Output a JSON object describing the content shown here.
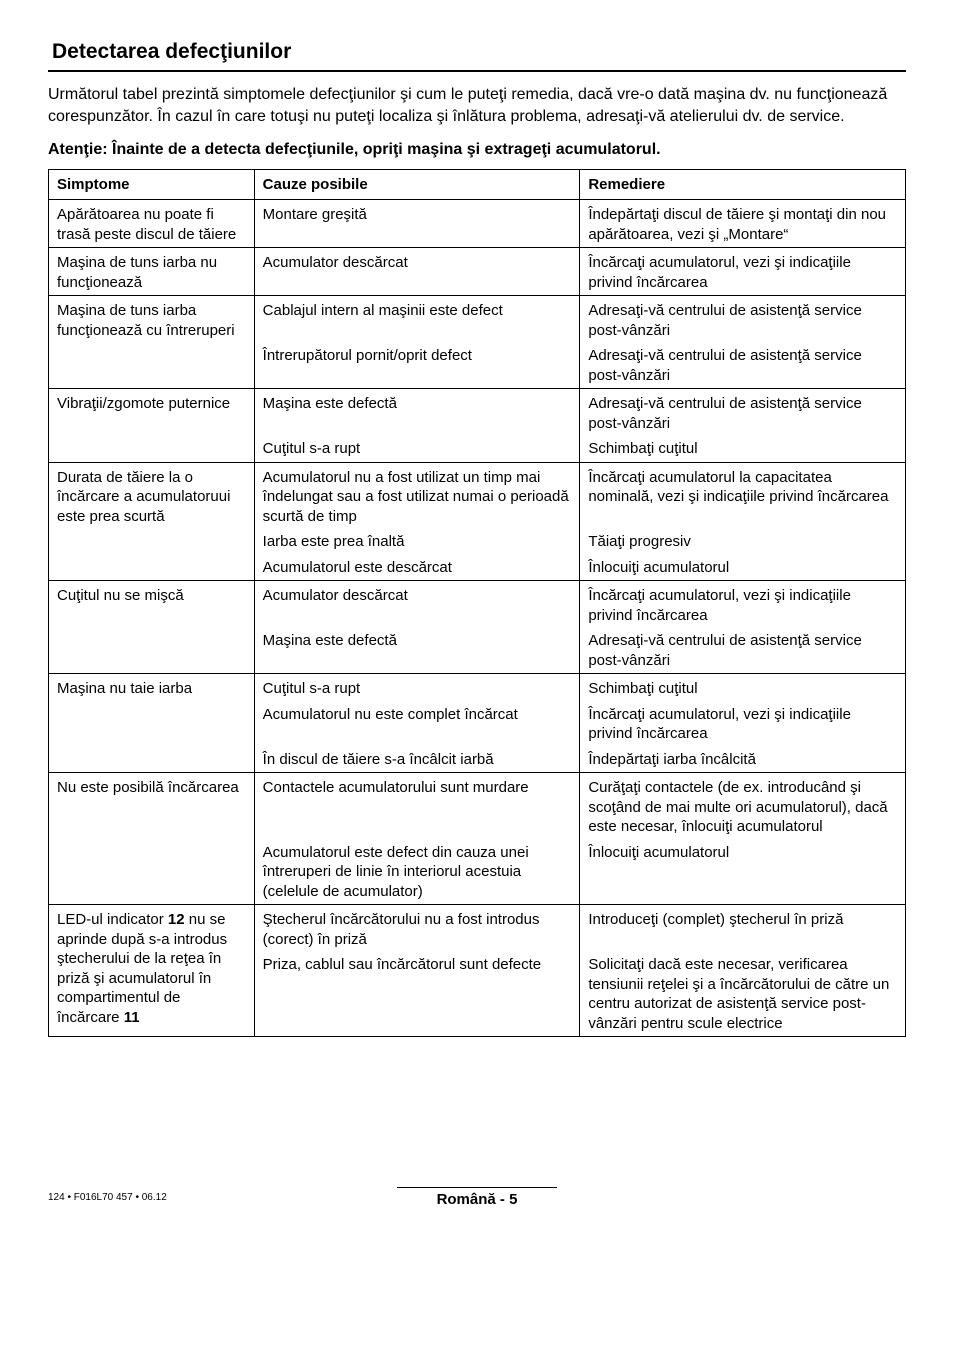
{
  "section_title": "Detectarea defecţiunilor",
  "intro": "Următorul tabel prezintă simptomele defecţiunilor şi cum le puteţi remedia, dacă vre-o dată maşina dv. nu funcţionează corespunzător. În cazul în care totuşi nu puteţi localiza şi înlătura problema, adresaţi-vă atelierului dv. de service.",
  "warning": "Atenţie: Înainte de a detecta defecţiunile, opriţi maşina şi extrageţi acumulatorul.",
  "headers": {
    "symptom": "Simptome",
    "cause": "Cauze posibile",
    "remedy": "Remediere"
  },
  "rows": [
    {
      "symptom": "Apărătoarea nu poate fi trasă peste discul de tăiere",
      "entries": [
        {
          "cause": "Montare greşită",
          "remedy": "Îndepărtaţi discul de tăiere şi montaţi din nou apărătoarea, vezi şi „Montare“"
        }
      ]
    },
    {
      "symptom": "Maşina de tuns iarba nu funcţionează",
      "entries": [
        {
          "cause": "Acumulator descărcat",
          "remedy": "Încărcaţi acumulatorul, vezi şi indicaţiile privind încărcarea"
        }
      ]
    },
    {
      "symptom": "Maşina de tuns iarba funcţionează cu întreruperi",
      "entries": [
        {
          "cause": "Cablajul intern al maşinii este defect",
          "remedy": "Adresaţi-vă centrului de asistenţă service post-vânzări"
        },
        {
          "cause": "Întrerupătorul pornit/oprit defect",
          "remedy": "Adresaţi-vă centrului de asistenţă service post-vânzări"
        }
      ]
    },
    {
      "symptom": "Vibraţii/zgomote puternice",
      "entries": [
        {
          "cause": "Maşina este defectă",
          "remedy": "Adresaţi-vă centrului de asistenţă service post-vânzări"
        },
        {
          "cause": "Cuţitul s-a rupt",
          "remedy": "Schimbaţi cuţitul"
        }
      ]
    },
    {
      "symptom": "Durata de tăiere la o încărcare a acumulatoruui este prea scurtă",
      "entries": [
        {
          "cause": "Acumulatorul nu a fost utilizat un timp mai îndelungat sau a fost utilizat numai o perioadă scurtă de timp",
          "remedy": "Încărcaţi acumulatorul la capacitatea nominală, vezi şi indicaţiile privind încărcarea"
        },
        {
          "cause": "Iarba este prea înaltă",
          "remedy": "Tăiaţi progresiv"
        },
        {
          "cause": "Acumulatorul este descărcat",
          "remedy": "Înlocuiţi acumulatorul"
        }
      ]
    },
    {
      "symptom": "Cuţitul nu se mişcă",
      "entries": [
        {
          "cause": "Acumulator descărcat",
          "remedy": "Încărcaţi acumulatorul, vezi şi indicaţiile privind încărcarea"
        },
        {
          "cause": "Maşina este defectă",
          "remedy": "Adresaţi-vă centrului de asistenţă service post-vânzări"
        }
      ]
    },
    {
      "symptom": "Maşina nu taie iarba",
      "entries": [
        {
          "cause": "Cuţitul s-a rupt",
          "remedy": "Schimbaţi cuţitul"
        },
        {
          "cause": "Acumulatorul nu este complet încărcat",
          "remedy": "Încărcaţi acumulatorul, vezi şi indicaţiile privind încărcarea"
        },
        {
          "cause": "În discul de tăiere s-a încâlcit iarbă",
          "remedy": "Îndepărtaţi iarba încâlcită"
        }
      ]
    },
    {
      "symptom": "Nu este posibilă încărcarea",
      "entries": [
        {
          "cause": "Contactele acumulatorului sunt murdare",
          "remedy": "Curăţaţi contactele (de ex. introducând şi scoţând de mai multe ori acumulatorul), dacă este necesar, înlocuiţi acumulatorul"
        },
        {
          "cause": "Acumulatorul este defect din cauza unei întreruperi de linie în interiorul acestuia (celelule de acumulator)",
          "remedy": "Înlocuiţi acumulatorul"
        }
      ]
    },
    {
      "symptom_parts": [
        "LED-ul indicator ",
        "12",
        " nu se aprinde după s-a introdus ştecherului de la reţea în priză şi acumulatorul în compartimentul de încărcare ",
        "11"
      ],
      "entries": [
        {
          "cause": "Ştecherul încărcătorului nu a fost introdus (corect) în priză",
          "remedy": "Introduceţi (complet) ştecherul în priză"
        },
        {
          "cause": "Priza, cablul sau încărcătorul sunt defecte",
          "remedy": "Solicitaţi dacă este necesar, verificarea tensiunii reţelei şi a încărcătorului de către un centru autorizat de asistenţă service post-vânzări pentru scule electrice"
        }
      ]
    }
  ],
  "footer": {
    "left": "124 • F016L70 457 • 06.12",
    "center": "Română - 5"
  }
}
